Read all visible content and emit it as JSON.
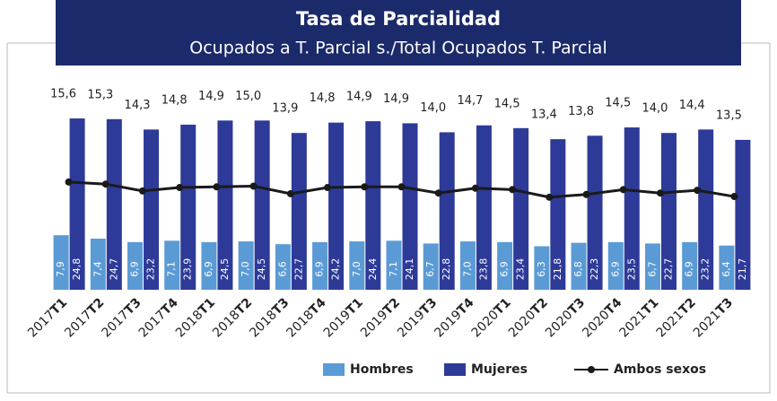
{
  "chart_data": {
    "type": "bar_line",
    "title": "Tasa de Parcialidad",
    "subtitle": "Ocupados a T. Parcial s./Total Ocupados T. Parcial",
    "categories": [
      "2017T1",
      "2017T2",
      "2017T3",
      "2017T4",
      "2018T1",
      "2018T2",
      "2018T3",
      "2018T4",
      "2019T1",
      "2019T2",
      "2019T3",
      "2019T4",
      "2020T1",
      "2020T2",
      "2020T3",
      "2020T4",
      "2021T1",
      "2021T2",
      "2021T3"
    ],
    "ylim": [
      0,
      30
    ],
    "series": [
      {
        "name": "Hombres",
        "color": "#5b9bd5",
        "values": [
          7.9,
          7.4,
          6.9,
          7.1,
          6.9,
          7.0,
          6.6,
          6.9,
          7.0,
          7.1,
          6.7,
          7.0,
          6.9,
          6.3,
          6.8,
          6.9,
          6.7,
          6.9,
          6.4
        ],
        "value_labels": [
          "7,9",
          "7,4",
          "6,9",
          "7,1",
          "6,9",
          "7,0",
          "6,6",
          "6,9",
          "7,0",
          "7,1",
          "6,7",
          "7,0",
          "6,9",
          "6,3",
          "6,8",
          "6,9",
          "6,7",
          "6,9",
          "6,4"
        ]
      },
      {
        "name": "Mujeres",
        "color": "#2e3a98",
        "values": [
          24.8,
          24.7,
          23.2,
          23.9,
          24.5,
          24.5,
          22.7,
          24.2,
          24.4,
          24.1,
          22.8,
          23.8,
          23.4,
          21.8,
          22.3,
          23.5,
          22.7,
          23.2,
          21.7
        ],
        "value_labels": [
          "24,8",
          "24,7",
          "23,2",
          "23,9",
          "24,5",
          "24,5",
          "22,7",
          "24,2",
          "24,4",
          "24,1",
          "22,8",
          "23,8",
          "23,4",
          "21,8",
          "22,3",
          "23,5",
          "22,7",
          "23,2",
          "21,7"
        ]
      },
      {
        "name": "Ambos sexos",
        "color": "#1a1a1a",
        "type": "line",
        "values": [
          15.6,
          15.3,
          14.3,
          14.8,
          14.9,
          15.0,
          13.9,
          14.8,
          14.9,
          14.9,
          14.0,
          14.7,
          14.5,
          13.4,
          13.8,
          14.5,
          14.0,
          14.4,
          13.5
        ],
        "value_labels": [
          "15,6",
          "15,3",
          "14,3",
          "14,8",
          "14,9",
          "15,0",
          "13,9",
          "14,8",
          "14,9",
          "14,9",
          "14,0",
          "14,7",
          "14,5",
          "13,4",
          "13,8",
          "14,5",
          "14,0",
          "14,4",
          "13,5"
        ]
      }
    ]
  }
}
